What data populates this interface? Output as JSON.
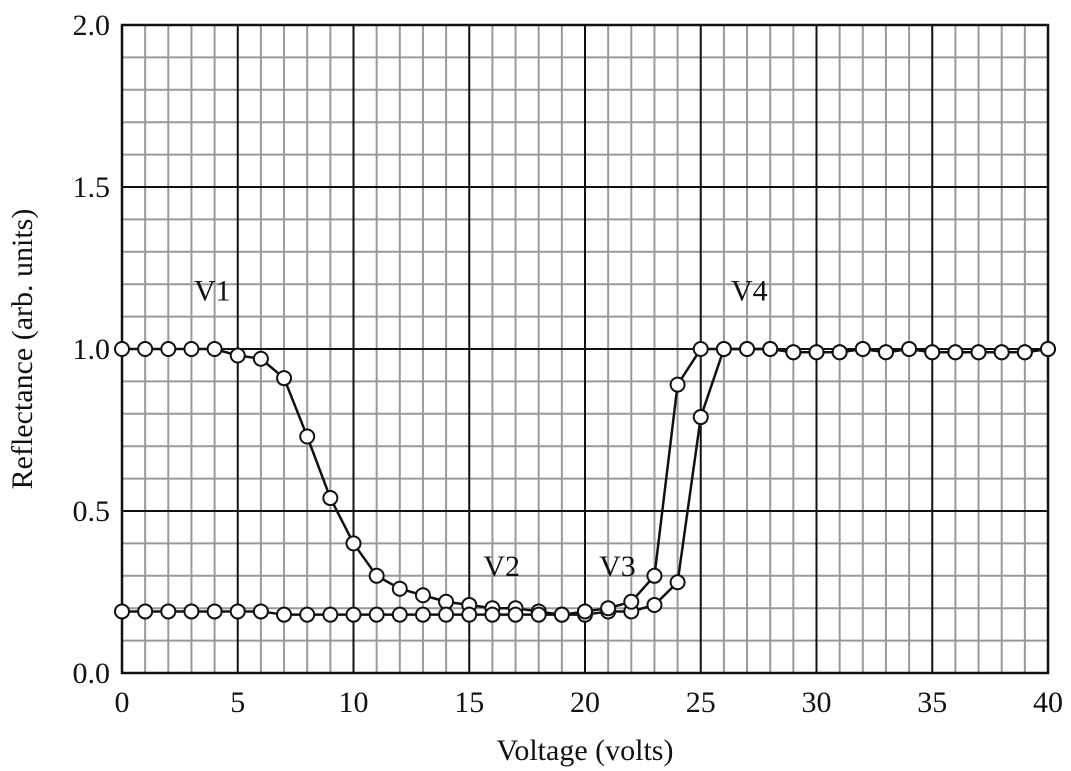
{
  "chart_data": {
    "type": "line",
    "x_label": "Voltage (volts)",
    "y_label": "Reflectance (arb. units)",
    "xlim": [
      0,
      40
    ],
    "ylim": [
      0,
      2
    ],
    "xticks": [
      0,
      5,
      10,
      15,
      20,
      25,
      30,
      35,
      40
    ],
    "yticks": [
      {
        "value": 0,
        "label": "0.0"
      },
      {
        "value": 0.5,
        "label": "0.5"
      },
      {
        "value": 1,
        "label": "1.0"
      },
      {
        "value": 1.5,
        "label": "1.5"
      },
      {
        "value": 2,
        "label": "2.0"
      }
    ],
    "x_minor_ticks": [
      1,
      2,
      3,
      4,
      6,
      7,
      8,
      9,
      11,
      12,
      13,
      14,
      16,
      17,
      18,
      19,
      21,
      22,
      23,
      24,
      26,
      27,
      28,
      29,
      31,
      32,
      33,
      34,
      36,
      37,
      38,
      39
    ],
    "y_minor_ticks": [
      0.1,
      0.2,
      0.3,
      0.4,
      0.6,
      0.7,
      0.8,
      0.9,
      1.1,
      1.2,
      1.3,
      1.4,
      1.6,
      1.7,
      1.8,
      1.9
    ],
    "grid": true,
    "x": [
      0,
      1,
      2,
      3,
      4,
      5,
      6,
      7,
      8,
      9,
      10,
      11,
      12,
      13,
      14,
      15,
      16,
      17,
      18,
      19,
      20,
      21,
      22,
      23,
      24,
      25,
      26,
      27,
      28,
      29,
      30,
      31,
      32,
      33,
      34,
      35,
      36,
      37,
      38,
      39,
      40
    ],
    "series": [
      {
        "color": "#111111",
        "values": [
          1.0,
          1.0,
          1.0,
          1.0,
          1.0,
          0.98,
          0.97,
          0.91,
          0.73,
          0.54,
          0.4,
          0.3,
          0.26,
          0.24,
          0.22,
          0.21,
          0.2,
          0.2,
          0.19,
          0.18,
          0.18,
          0.19,
          0.19,
          0.21,
          0.28,
          0.79,
          1.0,
          1.0,
          1.0,
          0.99,
          0.99,
          0.99,
          1.0,
          0.99,
          1.0,
          0.99,
          0.99,
          0.99,
          0.99,
          0.99,
          1.0
        ]
      },
      {
        "color": "#111111",
        "values": [
          0.19,
          0.19,
          0.19,
          0.19,
          0.19,
          0.19,
          0.19,
          0.18,
          0.18,
          0.18,
          0.18,
          0.18,
          0.18,
          0.18,
          0.18,
          0.18,
          0.18,
          0.18,
          0.18,
          0.18,
          0.19,
          0.2,
          0.22,
          0.3,
          0.89,
          1.0,
          1.0,
          1.0,
          1.0,
          0.99,
          0.99,
          0.99,
          1.0,
          0.99,
          1.0,
          0.99,
          0.99,
          0.99,
          0.99,
          0.99,
          1.0
        ]
      }
    ],
    "annotations": [
      {
        "text": "V1",
        "x": 3.9,
        "y": 1.15
      },
      {
        "text": "V2",
        "x": 16.4,
        "y": 0.3
      },
      {
        "text": "V3",
        "x": 21.4,
        "y": 0.3
      },
      {
        "text": "V4",
        "x": 27.1,
        "y": 1.15
      }
    ]
  }
}
